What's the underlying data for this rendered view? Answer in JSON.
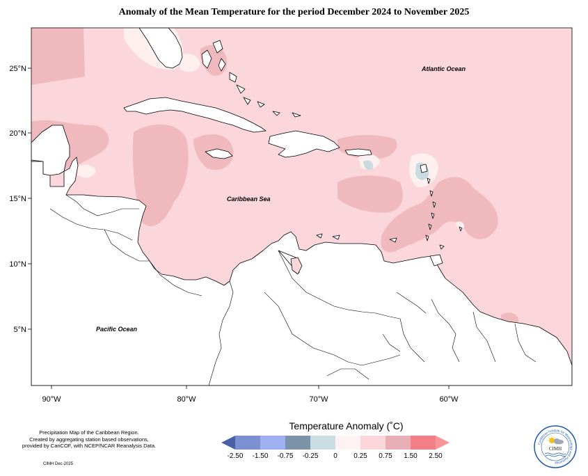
{
  "title": "Anomaly of the Mean Temperature for the period December 2024 to November 2025",
  "axes": {
    "lon_ticks": [
      {
        "value": -90,
        "label": "90°W"
      },
      {
        "value": -80,
        "label": "80°W"
      },
      {
        "value": -70,
        "label": "70°W"
      },
      {
        "value": -60,
        "label": "60°W"
      }
    ],
    "lat_ticks": [
      {
        "value": 25,
        "label": "25°N"
      },
      {
        "value": 20,
        "label": "20°N"
      },
      {
        "value": 15,
        "label": "15°N"
      },
      {
        "value": 10,
        "label": "10°N"
      },
      {
        "value": 5,
        "label": "5°N"
      }
    ]
  },
  "map_labels": {
    "atlantic": "Atlantic Ocean",
    "caribbean": "Caribbean Sea",
    "pacific": "Pacific Ocean"
  },
  "info": {
    "line1": "Precipitation Map of the Caribbean Region.",
    "line2": "Created by aggregating station based observations,",
    "line3": "provided by CariCOF, with NCEP/NCAR Reanalysis Data.",
    "credit": "CIMH Dec-2025"
  },
  "legend": {
    "title": "Temperature Anomaly (˚C)",
    "colors": [
      "#4b5fa6",
      "#7d8fd3",
      "#9fb0f2",
      "#7b92a8",
      "#c9dde2",
      "#fff2f2",
      "#fbd7dc",
      "#e8b0b6",
      "#f47f86",
      "#f69696"
    ],
    "ticks": [
      "-2.50",
      "-1.50",
      "-0.75",
      "-0.25",
      "0",
      "0.25",
      "0.75",
      "1.50",
      "2.50"
    ]
  },
  "logo": {
    "name": "CIMH",
    "arc_text": "Caribbean Institute for Meteorology and Hydrology"
  }
}
